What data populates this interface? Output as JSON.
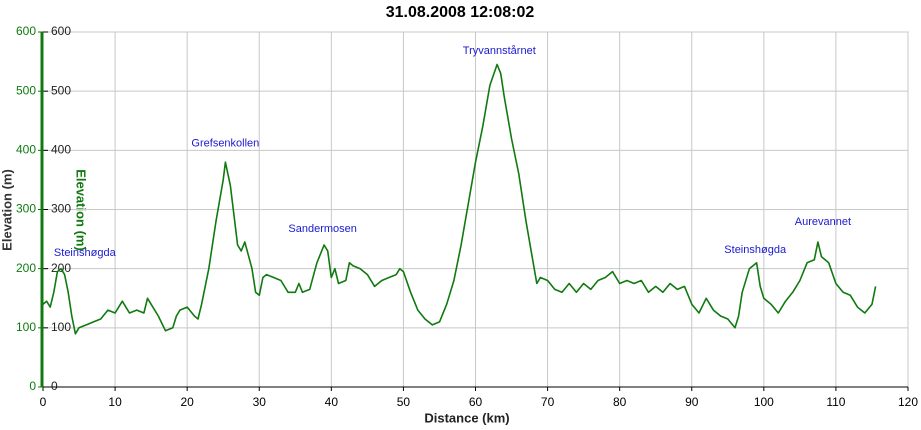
{
  "chart_data": {
    "type": "line",
    "title": "31.08.2008 12:08:02",
    "xlabel": "Distance (km)",
    "ylabel": "Elevation (m)",
    "y2label": "Elevation (m)",
    "xlim": [
      0,
      120
    ],
    "xticks": [
      0,
      10,
      20,
      30,
      40,
      50,
      60,
      70,
      80,
      90,
      100,
      110,
      120
    ],
    "ylim": [
      0,
      600
    ],
    "yticks": [
      0,
      100,
      200,
      300,
      400,
      500,
      600
    ],
    "y2lim": [
      0,
      600
    ],
    "y2ticks": [
      0,
      100,
      200,
      300,
      400,
      500,
      600
    ],
    "grid": true,
    "x": [
      0,
      0.5,
      1,
      1.5,
      2,
      2.5,
      3,
      3.5,
      4,
      4.5,
      5,
      6,
      7,
      8,
      9,
      10,
      11,
      12,
      13,
      14,
      14.5,
      15,
      16,
      17,
      18,
      18.5,
      19,
      20,
      21,
      21.5,
      22,
      23,
      24,
      25,
      25.3,
      26,
      26.5,
      27,
      27.5,
      28,
      29,
      29.5,
      30,
      30.5,
      31,
      32,
      33,
      34,
      35,
      35.5,
      36,
      37,
      38,
      39,
      39.5,
      40,
      40.5,
      41,
      42,
      42.5,
      43,
      44,
      45,
      46,
      47,
      48,
      49,
      49.5,
      50,
      51,
      52,
      53,
      54,
      55,
      56,
      57,
      58,
      59,
      60,
      61,
      62,
      63,
      63.5,
      64,
      65,
      66,
      67,
      68,
      68.5,
      69,
      70,
      71,
      72,
      73,
      74,
      75,
      76,
      77,
      78,
      79,
      80,
      81,
      82,
      83,
      84,
      85,
      86,
      87,
      88,
      89,
      90,
      91,
      92,
      93,
      94,
      95,
      96,
      96.5,
      97,
      98,
      99,
      99.5,
      100,
      101,
      102,
      103,
      104,
      105,
      106,
      107,
      107.5,
      108,
      109,
      110,
      111,
      112,
      113,
      114,
      115,
      115.5
    ],
    "series": [
      {
        "name": "Elevation",
        "color": "#107a10",
        "values": [
          140,
          145,
          135,
          160,
          195,
          200,
          190,
          160,
          120,
          90,
          100,
          105,
          110,
          115,
          130,
          125,
          145,
          125,
          130,
          125,
          150,
          140,
          120,
          95,
          100,
          120,
          130,
          135,
          120,
          115,
          140,
          200,
          280,
          350,
          380,
          340,
          290,
          240,
          230,
          245,
          200,
          160,
          155,
          185,
          190,
          185,
          180,
          160,
          160,
          175,
          160,
          165,
          210,
          240,
          230,
          185,
          200,
          175,
          180,
          210,
          205,
          200,
          190,
          170,
          180,
          185,
          190,
          200,
          195,
          160,
          130,
          115,
          105,
          110,
          140,
          180,
          240,
          310,
          380,
          440,
          510,
          545,
          530,
          490,
          420,
          360,
          280,
          210,
          175,
          185,
          180,
          165,
          160,
          175,
          160,
          175,
          165,
          180,
          185,
          195,
          175,
          180,
          175,
          180,
          160,
          170,
          160,
          175,
          165,
          170,
          140,
          125,
          150,
          130,
          120,
          115,
          100,
          120,
          160,
          200,
          210,
          170,
          150,
          140,
          125,
          145,
          160,
          180,
          210,
          215,
          245,
          220,
          210,
          175,
          160,
          155,
          135,
          125,
          140,
          170
        ]
      }
    ],
    "annotations": [
      {
        "text": "Steinshøgda",
        "x": 5.8,
        "y": 226
      },
      {
        "text": "Grefsenkollen",
        "x": 25.3,
        "y": 411
      },
      {
        "text": "Sandermosen",
        "x": 38.8,
        "y": 267
      },
      {
        "text": "Tryvannstårnet",
        "x": 63.3,
        "y": 568
      },
      {
        "text": "Steinshøgda",
        "x": 98.8,
        "y": 231
      },
      {
        "text": "Aurevannet",
        "x": 108.2,
        "y": 279
      }
    ]
  }
}
